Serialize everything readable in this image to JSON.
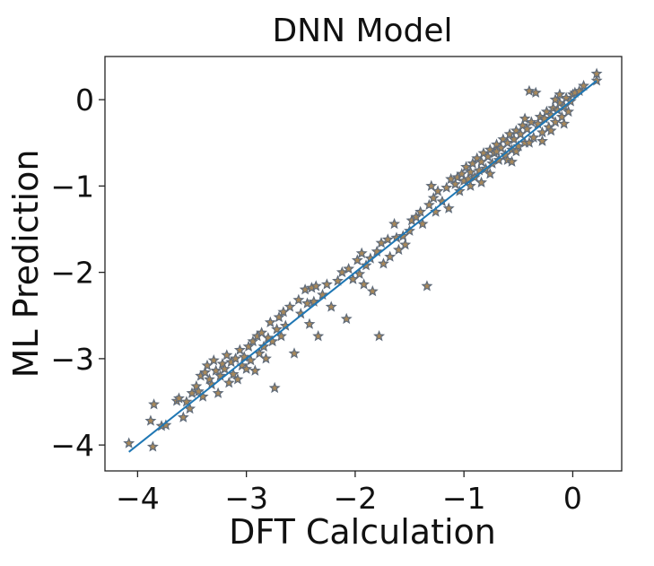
{
  "chart_data": {
    "type": "scatter",
    "title": "DNN Model",
    "xlabel": "DFT Calculation",
    "ylabel": "ML Prediction",
    "xlim": [
      -4.3,
      0.45
    ],
    "ylim": [
      -4.3,
      0.5
    ],
    "grid": false,
    "xticks": [
      -4,
      -3,
      -2,
      -1,
      0
    ],
    "xtick_labels": [
      "−4",
      "−3",
      "−2",
      "−1",
      "0"
    ],
    "yticks": [
      0,
      -1,
      -2,
      -3,
      -4
    ],
    "ytick_labels": [
      "0",
      "−1",
      "−2",
      "−3",
      "−4"
    ],
    "colors": {
      "marker_fill": "#a8885a",
      "marker_edge": "#5f6b7a",
      "line": "#1f77b4"
    },
    "marker": "star",
    "line": {
      "x": [
        -4.08,
        0.22
      ],
      "y": [
        -4.08,
        0.22
      ]
    },
    "points": [
      [
        -4.08,
        -3.98
      ],
      [
        -3.88,
        -3.72
      ],
      [
        -3.86,
        -4.02
      ],
      [
        -3.85,
        -3.53
      ],
      [
        -3.78,
        -3.78
      ],
      [
        -3.74,
        -3.77
      ],
      [
        -3.64,
        -3.49
      ],
      [
        -3.62,
        -3.46
      ],
      [
        -3.58,
        -3.68
      ],
      [
        -3.55,
        -3.5
      ],
      [
        -3.52,
        -3.58
      ],
      [
        -3.5,
        -3.4
      ],
      [
        -3.46,
        -3.32
      ],
      [
        -3.44,
        -3.38
      ],
      [
        -3.42,
        -3.2
      ],
      [
        -3.4,
        -3.44
      ],
      [
        -3.38,
        -3.16
      ],
      [
        -3.36,
        -3.08
      ],
      [
        -3.34,
        -3.24
      ],
      [
        -3.32,
        -3.3
      ],
      [
        -3.3,
        -3.02
      ],
      [
        -3.28,
        -3.14
      ],
      [
        -3.26,
        -3.4
      ],
      [
        -3.24,
        -3.2
      ],
      [
        -3.22,
        -3.06
      ],
      [
        -3.2,
        -3.12
      ],
      [
        -3.18,
        -2.96
      ],
      [
        -3.16,
        -3.28
      ],
      [
        -3.14,
        -3.04
      ],
      [
        -3.12,
        -3.18
      ],
      [
        -3.1,
        -3.0
      ],
      [
        -3.08,
        -3.24
      ],
      [
        -3.06,
        -2.9
      ],
      [
        -3.04,
        -3.08
      ],
      [
        -3.02,
        -2.98
      ],
      [
        -3.0,
        -3.12
      ],
      [
        -2.98,
        -2.86
      ],
      [
        -2.96,
        -3.02
      ],
      [
        -2.94,
        -2.8
      ],
      [
        -2.92,
        -3.14
      ],
      [
        -2.9,
        -2.74
      ],
      [
        -2.88,
        -2.94
      ],
      [
        -2.86,
        -2.7
      ],
      [
        -2.84,
        -2.86
      ],
      [
        -2.82,
        -3.0
      ],
      [
        -2.8,
        -2.76
      ],
      [
        -2.78,
        -2.58
      ],
      [
        -2.76,
        -2.8
      ],
      [
        -2.74,
        -3.34
      ],
      [
        -2.72,
        -2.66
      ],
      [
        -2.7,
        -2.52
      ],
      [
        -2.68,
        -2.74
      ],
      [
        -2.66,
        -2.46
      ],
      [
        -2.64,
        -2.62
      ],
      [
        -2.6,
        -2.4
      ],
      [
        -2.56,
        -2.94
      ],
      [
        -2.52,
        -2.32
      ],
      [
        -2.5,
        -2.48
      ],
      [
        -2.46,
        -2.2
      ],
      [
        -2.44,
        -2.36
      ],
      [
        -2.42,
        -2.6
      ],
      [
        -2.4,
        -2.18
      ],
      [
        -2.38,
        -2.34
      ],
      [
        -2.36,
        -2.16
      ],
      [
        -2.34,
        -2.74
      ],
      [
        -2.3,
        -2.26
      ],
      [
        -2.26,
        -2.14
      ],
      [
        -2.22,
        -2.4
      ],
      [
        -2.16,
        -2.1
      ],
      [
        -2.12,
        -2.0
      ],
      [
        -2.08,
        -2.54
      ],
      [
        -2.06,
        -1.96
      ],
      [
        -2.02,
        -2.08
      ],
      [
        -1.98,
        -1.86
      ],
      [
        -1.96,
        -2.02
      ],
      [
        -1.94,
        -1.78
      ],
      [
        -1.92,
        -2.14
      ],
      [
        -1.9,
        -1.92
      ],
      [
        -1.86,
        -1.84
      ],
      [
        -1.84,
        -2.22
      ],
      [
        -1.8,
        -1.76
      ],
      [
        -1.78,
        -2.74
      ],
      [
        -1.76,
        -1.66
      ],
      [
        -1.74,
        -1.9
      ],
      [
        -1.7,
        -1.62
      ],
      [
        -1.68,
        -1.82
      ],
      [
        -1.64,
        -1.44
      ],
      [
        -1.62,
        -1.6
      ],
      [
        -1.6,
        -1.74
      ],
      [
        -1.56,
        -1.58
      ],
      [
        -1.54,
        -1.68
      ],
      [
        -1.5,
        -1.52
      ],
      [
        -1.48,
        -1.4
      ],
      [
        -1.44,
        -1.36
      ],
      [
        -1.4,
        -1.3
      ],
      [
        -1.38,
        -1.44
      ],
      [
        -1.34,
        -2.16
      ],
      [
        -1.32,
        -1.22
      ],
      [
        -1.3,
        -1.0
      ],
      [
        -1.28,
        -1.14
      ],
      [
        -1.26,
        -1.3
      ],
      [
        -1.24,
        -1.06
      ],
      [
        -1.2,
        -1.18
      ],
      [
        -1.16,
        -1.02
      ],
      [
        -1.14,
        -1.26
      ],
      [
        -1.12,
        -0.92
      ],
      [
        -1.08,
        -0.98
      ],
      [
        -1.06,
        -0.9
      ],
      [
        -1.04,
        -1.06
      ],
      [
        -1.02,
        -0.86
      ],
      [
        -1.0,
        -0.94
      ],
      [
        -0.98,
        -0.78
      ],
      [
        -0.96,
        -0.92
      ],
      [
        -0.94,
        -0.84
      ],
      [
        -0.92,
        -0.74
      ],
      [
        -0.9,
        -0.9
      ],
      [
        -0.88,
        -0.68
      ],
      [
        -0.86,
        -0.82
      ],
      [
        -0.84,
        -0.72
      ],
      [
        -0.82,
        -0.62
      ],
      [
        -0.8,
        -0.8
      ],
      [
        -0.78,
        -0.66
      ],
      [
        -0.76,
        -0.58
      ],
      [
        -0.74,
        -0.74
      ],
      [
        -0.72,
        -0.62
      ],
      [
        -0.7,
        -0.52
      ],
      [
        -0.68,
        -0.7
      ],
      [
        -0.66,
        -0.56
      ],
      [
        -0.64,
        -0.46
      ],
      [
        -0.62,
        -0.64
      ],
      [
        -0.6,
        -0.5
      ],
      [
        -0.58,
        -0.4
      ],
      [
        -0.56,
        -0.58
      ],
      [
        -0.54,
        -0.46
      ],
      [
        -0.52,
        -0.36
      ],
      [
        -0.5,
        -0.54
      ],
      [
        -0.48,
        -0.4
      ],
      [
        -0.46,
        -0.3
      ],
      [
        -0.44,
        -0.5
      ],
      [
        -0.42,
        -0.34
      ],
      [
        -0.4,
        0.1
      ],
      [
        -0.38,
        -0.26
      ],
      [
        -0.36,
        -0.44
      ],
      [
        -0.34,
        0.08
      ],
      [
        -0.32,
        -0.28
      ],
      [
        -0.3,
        -0.2
      ],
      [
        -0.28,
        -0.38
      ],
      [
        -0.26,
        -0.22
      ],
      [
        -0.24,
        -0.14
      ],
      [
        -0.22,
        -0.32
      ],
      [
        -0.2,
        -0.18
      ],
      [
        -0.18,
        -0.1
      ],
      [
        -0.16,
        -0.26
      ],
      [
        -0.14,
        -0.12
      ],
      [
        -0.12,
        -0.04
      ],
      [
        -0.1,
        -0.2
      ],
      [
        -0.08,
        -0.08
      ],
      [
        -0.06,
        0.02
      ],
      [
        -0.04,
        -0.14
      ],
      [
        -0.02,
        -0.02
      ],
      [
        0.0,
        0.06
      ],
      [
        0.02,
        0.08
      ],
      [
        0.06,
        0.1
      ],
      [
        0.1,
        0.16
      ],
      [
        0.22,
        0.22
      ],
      [
        0.22,
        0.3
      ],
      [
        -0.52,
        -0.6
      ],
      [
        -0.4,
        -0.5
      ],
      [
        -0.08,
        -0.28
      ],
      [
        -0.84,
        -0.96
      ],
      [
        -0.6,
        -0.7
      ],
      [
        -0.2,
        -0.36
      ],
      [
        -0.76,
        -0.86
      ],
      [
        -0.28,
        -0.48
      ],
      [
        -0.12,
        0.06
      ],
      [
        -0.56,
        -0.72
      ],
      [
        -0.94,
        -1.0
      ],
      [
        -0.7,
        -0.6
      ],
      [
        -0.44,
        -0.22
      ],
      [
        -0.16,
        0.0
      ]
    ]
  }
}
